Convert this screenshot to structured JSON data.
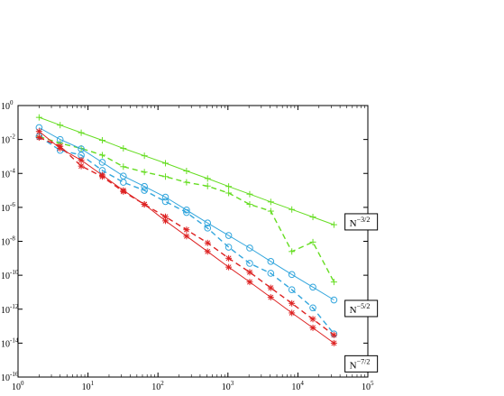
{
  "chart_data": {
    "type": "line",
    "title": "",
    "xlabel": "",
    "ylabel": "",
    "x_scale": "log",
    "y_scale": "log",
    "xlim": [
      1,
      100000
    ],
    "ylim": [
      1e-16,
      1
    ],
    "grid": false,
    "x_ticks": [
      {
        "base": "10",
        "exp": "0",
        "value": 1
      },
      {
        "base": "10",
        "exp": "1",
        "value": 10
      },
      {
        "base": "10",
        "exp": "2",
        "value": 100
      },
      {
        "base": "10",
        "exp": "3",
        "value": 1000
      },
      {
        "base": "10",
        "exp": "4",
        "value": 10000
      },
      {
        "base": "10",
        "exp": "5",
        "value": 100000
      }
    ],
    "y_ticks": [
      {
        "base": "10",
        "exp": "0",
        "value": 1
      },
      {
        "base": "10",
        "exp": "-2",
        "value": 0.01
      },
      {
        "base": "10",
        "exp": "-4",
        "value": 0.0001
      },
      {
        "base": "10",
        "exp": "-6",
        "value": 1e-06
      },
      {
        "base": "10",
        "exp": "-8",
        "value": 1e-08
      },
      {
        "base": "10",
        "exp": "-10",
        "value": 1e-10
      },
      {
        "base": "10",
        "exp": "-12",
        "value": 1e-12
      },
      {
        "base": "10",
        "exp": "-14",
        "value": 1e-14
      },
      {
        "base": "10",
        "exp": "-16",
        "value": 1e-16
      }
    ],
    "annotations": [
      {
        "base": "N",
        "exp": "−3/2",
        "x": 50000,
        "y": 1.4e-07
      },
      {
        "base": "N",
        "exp": "−5/2",
        "x": 50000,
        "y": 1.1e-12
      },
      {
        "base": "N",
        "exp": "−7/2",
        "x": 50000,
        "y": 6e-16
      }
    ],
    "series": [
      {
        "color": "#66dd22",
        "dash": "solid",
        "marker": "plus",
        "x": [
          2,
          4,
          8,
          16,
          32,
          64,
          128,
          256,
          512,
          1024,
          2048,
          4096,
          8192,
          16384,
          32768
        ],
        "y": [
          0.2,
          0.07,
          0.025,
          0.009,
          0.003,
          0.0011,
          0.0004,
          0.00014,
          5e-05,
          1.7e-05,
          6e-06,
          2.1e-06,
          7.5e-07,
          2.7e-07,
          9.5e-08
        ]
      },
      {
        "color": "#66dd22",
        "dash": "dashed",
        "marker": "plus",
        "x": [
          2,
          4,
          8,
          16,
          32,
          64,
          128,
          256,
          512,
          1024,
          2048,
          4096,
          8192,
          16384,
          32768
        ],
        "y": [
          0.015,
          0.006,
          0.003,
          0.0012,
          0.00025,
          0.00012,
          6.5e-05,
          3e-05,
          1.8e-05,
          7e-06,
          1.5e-06,
          6e-07,
          2.5e-09,
          9e-09,
          4e-11
        ]
      },
      {
        "color": "#33a6dd",
        "dash": "solid",
        "marker": "circle",
        "x": [
          2,
          4,
          8,
          16,
          32,
          64,
          128,
          256,
          512,
          1024,
          2048,
          4096,
          8192,
          16384,
          32768
        ],
        "y": [
          0.05,
          0.01,
          0.0028,
          0.00045,
          7e-05,
          1.7e-05,
          4e-06,
          7e-07,
          1.2e-07,
          2.2e-08,
          4e-09,
          6.5e-10,
          1.1e-10,
          2e-11,
          3.5e-12
        ]
      },
      {
        "color": "#33a6dd",
        "dash": "dashed",
        "marker": "circle",
        "x": [
          2,
          4,
          8,
          16,
          32,
          64,
          128,
          256,
          512,
          1024,
          2048,
          4096,
          8192,
          16384,
          32768
        ],
        "y": [
          0.015,
          0.0023,
          0.0012,
          0.00015,
          3e-05,
          1e-05,
          2.2e-06,
          5e-07,
          6e-08,
          4.5e-09,
          5e-10,
          1.3e-10,
          1.4e-11,
          1.2e-12,
          3.5e-14
        ]
      },
      {
        "color": "#dd2222",
        "dash": "solid",
        "marker": "asterisk",
        "x": [
          2,
          4,
          8,
          16,
          32,
          64,
          128,
          256,
          512,
          1024,
          2048,
          4096,
          8192,
          16384,
          32768
        ],
        "y": [
          0.03,
          0.003,
          0.0006,
          8e-05,
          1e-05,
          1.5e-06,
          1.6e-07,
          2e-08,
          2.5e-09,
          3e-10,
          4e-11,
          5e-12,
          6e-13,
          8e-14,
          1e-14
        ]
      },
      {
        "color": "#dd2222",
        "dash": "dashed",
        "marker": "asterisk",
        "x": [
          2,
          4,
          8,
          16,
          32,
          64,
          128,
          256,
          512,
          1024,
          2048,
          4096,
          8192,
          16384,
          32768
        ],
        "y": [
          0.013,
          0.004,
          0.00027,
          6.5e-05,
          8.5e-06,
          1.5e-06,
          2.8e-07,
          4.8e-08,
          8e-09,
          1e-09,
          1.5e-10,
          1.8e-11,
          2.2e-12,
          2.6e-13,
          3e-14
        ]
      }
    ]
  }
}
